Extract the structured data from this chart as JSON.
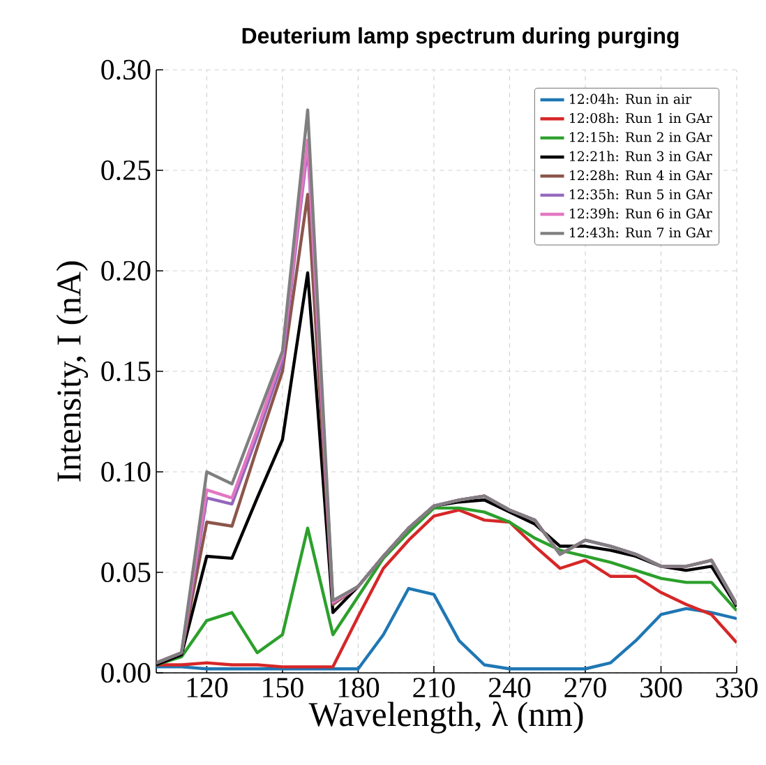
{
  "chart_data": {
    "type": "line",
    "title": "Deuterium lamp spectrum during purging",
    "xlabel": "Wavelength, λ (nm)",
    "ylabel": "Intensity, I (nA)",
    "x": [
      100,
      110,
      120,
      130,
      140,
      150,
      160,
      170,
      180,
      190,
      200,
      210,
      220,
      230,
      240,
      250,
      260,
      270,
      280,
      290,
      300,
      310,
      320,
      330
    ],
    "series": [
      {
        "name": "12:04h: Run in air",
        "color": "#1f77b4",
        "values": [
          0.003,
          0.003,
          0.002,
          0.002,
          0.002,
          0.002,
          0.002,
          0.002,
          0.002,
          0.019,
          0.042,
          0.039,
          0.016,
          0.004,
          0.002,
          0.002,
          0.002,
          0.002,
          0.005,
          0.016,
          0.029,
          0.032,
          0.03,
          0.027
        ]
      },
      {
        "name": "12:08h: Run 1 in GAr",
        "color": "#d62728",
        "values": [
          0.004,
          0.004,
          0.005,
          0.004,
          0.004,
          0.003,
          0.003,
          0.003,
          0.028,
          0.052,
          0.066,
          0.078,
          0.081,
          0.076,
          0.075,
          0.063,
          0.052,
          0.056,
          0.048,
          0.048,
          0.04,
          0.034,
          0.029,
          0.015
        ]
      },
      {
        "name": "12:15h: Run 2 in GAr",
        "color": "#2ca02c",
        "values": [
          0.004,
          0.008,
          0.026,
          0.03,
          0.01,
          0.019,
          0.072,
          0.019,
          0.038,
          0.057,
          0.07,
          0.082,
          0.082,
          0.08,
          0.075,
          0.067,
          0.061,
          0.058,
          0.055,
          0.051,
          0.047,
          0.045,
          0.045,
          0.031
        ]
      },
      {
        "name": "12:21h: Run 3 in GAr",
        "color": "#000000",
        "values": [
          0.004,
          0.009,
          0.058,
          0.057,
          0.087,
          0.116,
          0.199,
          0.03,
          0.043,
          0.058,
          0.072,
          0.083,
          0.085,
          0.086,
          0.08,
          0.074,
          0.063,
          0.063,
          0.061,
          0.058,
          0.053,
          0.051,
          0.053,
          0.033
        ]
      },
      {
        "name": "12:28h: Run 4 in GAr",
        "color": "#8c564b",
        "values": [
          0.005,
          0.01,
          0.075,
          0.073,
          0.112,
          0.15,
          0.238,
          0.034,
          0.043,
          0.058,
          0.072,
          0.083,
          0.086,
          0.088,
          0.081,
          0.076,
          0.059,
          0.066,
          0.063,
          0.059,
          0.053,
          0.053,
          0.056,
          0.034
        ]
      },
      {
        "name": "12:35h: Run 5 in GAr",
        "color": "#9467bd",
        "values": [
          0.005,
          0.01,
          0.087,
          0.084,
          0.118,
          0.155,
          0.262,
          0.035,
          0.043,
          0.058,
          0.072,
          0.083,
          0.086,
          0.088,
          0.081,
          0.076,
          0.059,
          0.066,
          0.063,
          0.059,
          0.053,
          0.053,
          0.056,
          0.034
        ]
      },
      {
        "name": "12:39h: Run 6 in GAr",
        "color": "#e377c2",
        "values": [
          0.005,
          0.01,
          0.091,
          0.087,
          0.121,
          0.158,
          0.265,
          0.035,
          0.043,
          0.058,
          0.072,
          0.083,
          0.086,
          0.088,
          0.081,
          0.076,
          0.059,
          0.066,
          0.063,
          0.059,
          0.053,
          0.053,
          0.056,
          0.034
        ]
      },
      {
        "name": "12:43h: Run 7 in GAr",
        "color": "#7f7f7f",
        "values": [
          0.005,
          0.01,
          0.1,
          0.094,
          0.127,
          0.16,
          0.28,
          0.036,
          0.043,
          0.058,
          0.072,
          0.083,
          0.086,
          0.088,
          0.081,
          0.076,
          0.059,
          0.066,
          0.063,
          0.059,
          0.053,
          0.053,
          0.056,
          0.034
        ]
      }
    ],
    "xlim": [
      100,
      330
    ],
    "ylim": [
      0,
      0.3
    ],
    "xticks": [
      120,
      150,
      180,
      210,
      240,
      270,
      300,
      330
    ],
    "yticks": [
      {
        "value": 0,
        "label": "0.00"
      },
      {
        "value": 0.05,
        "label": "0.05"
      },
      {
        "value": 0.1,
        "label": "0.10"
      },
      {
        "value": 0.15,
        "label": "0.15"
      },
      {
        "value": 0.2,
        "label": "0.20"
      },
      {
        "value": 0.25,
        "label": "0.25"
      },
      {
        "value": 0.3,
        "label": "0.30"
      }
    ],
    "grid": true,
    "legend": "top right",
    "line_style": "solid",
    "marker": "none"
  }
}
